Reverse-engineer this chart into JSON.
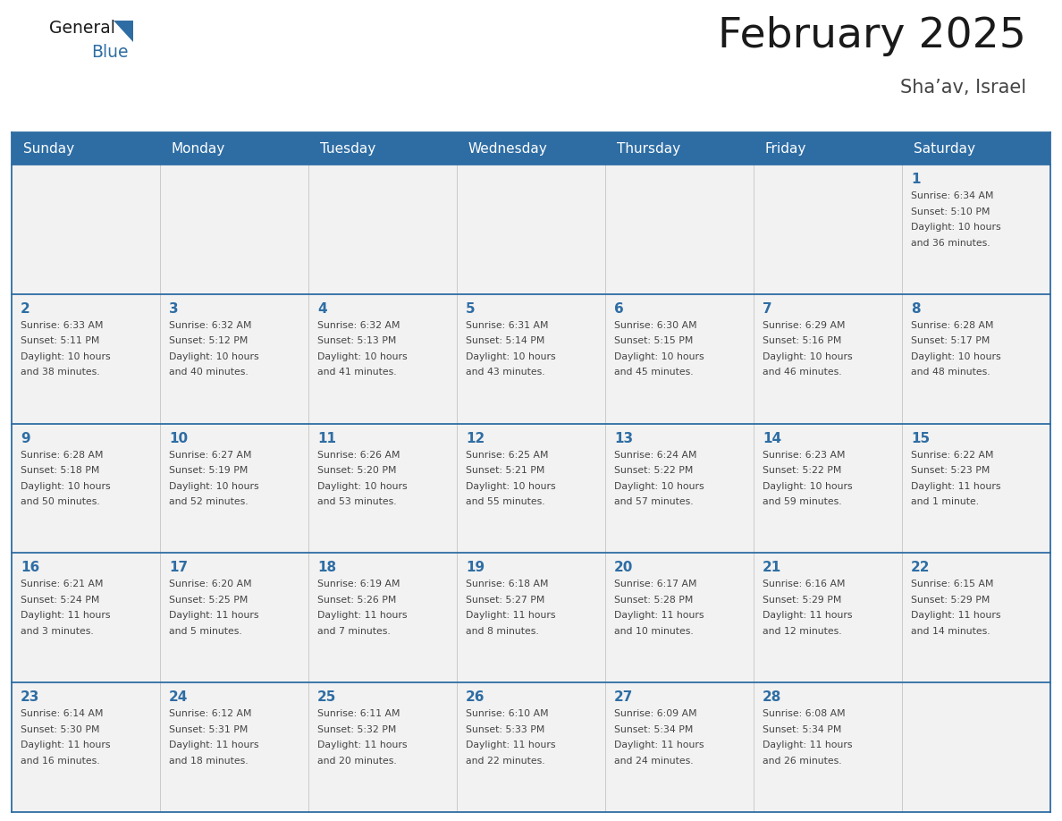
{
  "title": "February 2025",
  "subtitle": "Sha’av, Israel",
  "days_of_week": [
    "Sunday",
    "Monday",
    "Tuesday",
    "Wednesday",
    "Thursday",
    "Friday",
    "Saturday"
  ],
  "header_bg": "#2E6DA4",
  "header_text": "#FFFFFF",
  "cell_bg": "#F2F2F2",
  "border_color": "#2E6DA4",
  "day_num_color": "#2E6DA4",
  "text_color": "#444444",
  "calendar_data": [
    [
      null,
      null,
      null,
      null,
      null,
      null,
      {
        "day": 1,
        "sunrise": "6:34 AM",
        "sunset": "5:10 PM",
        "daylight": "10 hours\nand 36 minutes."
      }
    ],
    [
      {
        "day": 2,
        "sunrise": "6:33 AM",
        "sunset": "5:11 PM",
        "daylight": "10 hours\nand 38 minutes."
      },
      {
        "day": 3,
        "sunrise": "6:32 AM",
        "sunset": "5:12 PM",
        "daylight": "10 hours\nand 40 minutes."
      },
      {
        "day": 4,
        "sunrise": "6:32 AM",
        "sunset": "5:13 PM",
        "daylight": "10 hours\nand 41 minutes."
      },
      {
        "day": 5,
        "sunrise": "6:31 AM",
        "sunset": "5:14 PM",
        "daylight": "10 hours\nand 43 minutes."
      },
      {
        "day": 6,
        "sunrise": "6:30 AM",
        "sunset": "5:15 PM",
        "daylight": "10 hours\nand 45 minutes."
      },
      {
        "day": 7,
        "sunrise": "6:29 AM",
        "sunset": "5:16 PM",
        "daylight": "10 hours\nand 46 minutes."
      },
      {
        "day": 8,
        "sunrise": "6:28 AM",
        "sunset": "5:17 PM",
        "daylight": "10 hours\nand 48 minutes."
      }
    ],
    [
      {
        "day": 9,
        "sunrise": "6:28 AM",
        "sunset": "5:18 PM",
        "daylight": "10 hours\nand 50 minutes."
      },
      {
        "day": 10,
        "sunrise": "6:27 AM",
        "sunset": "5:19 PM",
        "daylight": "10 hours\nand 52 minutes."
      },
      {
        "day": 11,
        "sunrise": "6:26 AM",
        "sunset": "5:20 PM",
        "daylight": "10 hours\nand 53 minutes."
      },
      {
        "day": 12,
        "sunrise": "6:25 AM",
        "sunset": "5:21 PM",
        "daylight": "10 hours\nand 55 minutes."
      },
      {
        "day": 13,
        "sunrise": "6:24 AM",
        "sunset": "5:22 PM",
        "daylight": "10 hours\nand 57 minutes."
      },
      {
        "day": 14,
        "sunrise": "6:23 AM",
        "sunset": "5:22 PM",
        "daylight": "10 hours\nand 59 minutes."
      },
      {
        "day": 15,
        "sunrise": "6:22 AM",
        "sunset": "5:23 PM",
        "daylight": "11 hours\nand 1 minute."
      }
    ],
    [
      {
        "day": 16,
        "sunrise": "6:21 AM",
        "sunset": "5:24 PM",
        "daylight": "11 hours\nand 3 minutes."
      },
      {
        "day": 17,
        "sunrise": "6:20 AM",
        "sunset": "5:25 PM",
        "daylight": "11 hours\nand 5 minutes."
      },
      {
        "day": 18,
        "sunrise": "6:19 AM",
        "sunset": "5:26 PM",
        "daylight": "11 hours\nand 7 minutes."
      },
      {
        "day": 19,
        "sunrise": "6:18 AM",
        "sunset": "5:27 PM",
        "daylight": "11 hours\nand 8 minutes."
      },
      {
        "day": 20,
        "sunrise": "6:17 AM",
        "sunset": "5:28 PM",
        "daylight": "11 hours\nand 10 minutes."
      },
      {
        "day": 21,
        "sunrise": "6:16 AM",
        "sunset": "5:29 PM",
        "daylight": "11 hours\nand 12 minutes."
      },
      {
        "day": 22,
        "sunrise": "6:15 AM",
        "sunset": "5:29 PM",
        "daylight": "11 hours\nand 14 minutes."
      }
    ],
    [
      {
        "day": 23,
        "sunrise": "6:14 AM",
        "sunset": "5:30 PM",
        "daylight": "11 hours\nand 16 minutes."
      },
      {
        "day": 24,
        "sunrise": "6:12 AM",
        "sunset": "5:31 PM",
        "daylight": "11 hours\nand 18 minutes."
      },
      {
        "day": 25,
        "sunrise": "6:11 AM",
        "sunset": "5:32 PM",
        "daylight": "11 hours\nand 20 minutes."
      },
      {
        "day": 26,
        "sunrise": "6:10 AM",
        "sunset": "5:33 PM",
        "daylight": "11 hours\nand 22 minutes."
      },
      {
        "day": 27,
        "sunrise": "6:09 AM",
        "sunset": "5:34 PM",
        "daylight": "11 hours\nand 24 minutes."
      },
      {
        "day": 28,
        "sunrise": "6:08 AM",
        "sunset": "5:34 PM",
        "daylight": "11 hours\nand 26 minutes."
      },
      null
    ]
  ]
}
